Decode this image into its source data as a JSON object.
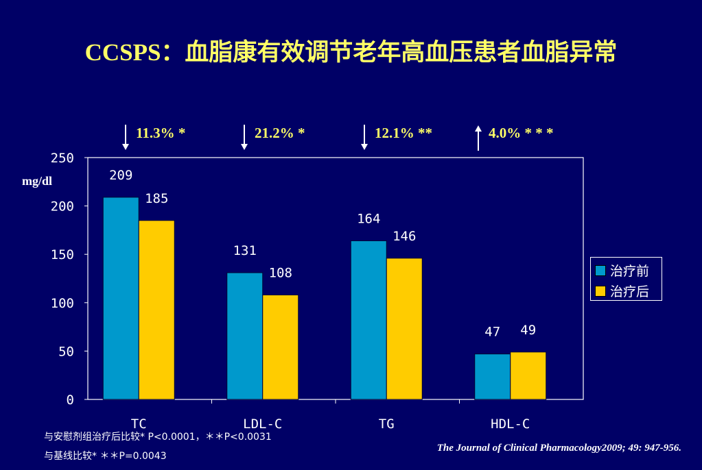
{
  "title": "CCSPS：血脂康有效调节老年高血压患者血脂异常",
  "changes": [
    {
      "direction": "down",
      "text": "11.3% *"
    },
    {
      "direction": "down",
      "text": "21.2% *"
    },
    {
      "direction": "down",
      "text": "12.1% **"
    },
    {
      "direction": "up",
      "text": "4.0% * * *"
    }
  ],
  "chart_data": {
    "type": "bar",
    "categories": [
      "TC",
      "LDL-C",
      "TG",
      "HDL-C"
    ],
    "series": [
      {
        "name": "治疗前",
        "color": "#0099cc",
        "values": [
          209,
          131,
          164,
          47
        ]
      },
      {
        "name": "治疗后",
        "color": "#ffcc00",
        "values": [
          185,
          108,
          146,
          49
        ]
      }
    ],
    "ylabel": "mg/dl",
    "ylim": [
      0,
      250
    ],
    "yticks": [
      0,
      50,
      100,
      150,
      200,
      250
    ],
    "grid": false,
    "legend": "right"
  },
  "footnotes": {
    "line1": "与安慰剂组治疗后比较* P<0.0001，＊＊P<0.0031",
    "line2": "与基线比较* ＊＊P=0.0043"
  },
  "citation": "The Journal of Clinical Pharmacology2009; 49: 947-956."
}
